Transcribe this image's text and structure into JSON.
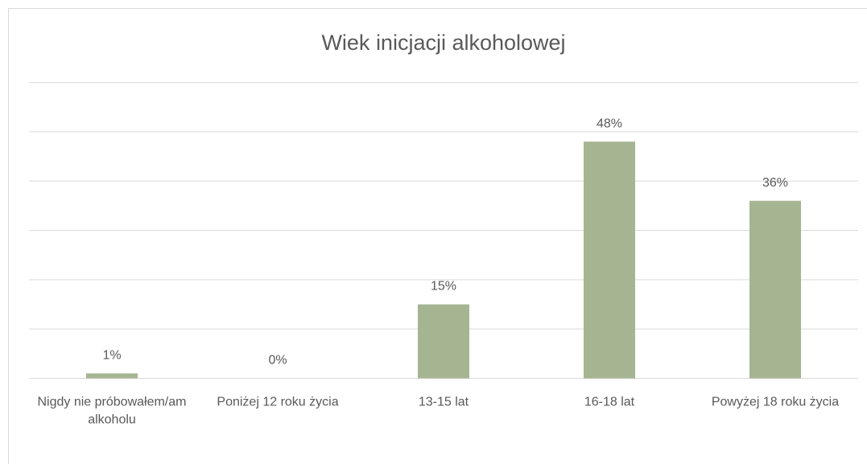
{
  "chart_data": {
    "type": "bar",
    "title": "Wiek inicjacji alkoholowej",
    "categories": [
      "Nigdy nie próbowałem/am alkoholu",
      "Poniżej 12 roku życia",
      "13-15 lat",
      "16-18 lat",
      "Powyżej 18 roku życia"
    ],
    "values": [
      1,
      0,
      15,
      48,
      36
    ],
    "value_labels": [
      "1%",
      "0%",
      "15%",
      "48%",
      "36%"
    ],
    "color": "#a5b592",
    "ylim": [
      0,
      60
    ],
    "yticks": [
      0,
      10,
      20,
      30,
      40,
      50,
      60
    ],
    "grid": true
  }
}
